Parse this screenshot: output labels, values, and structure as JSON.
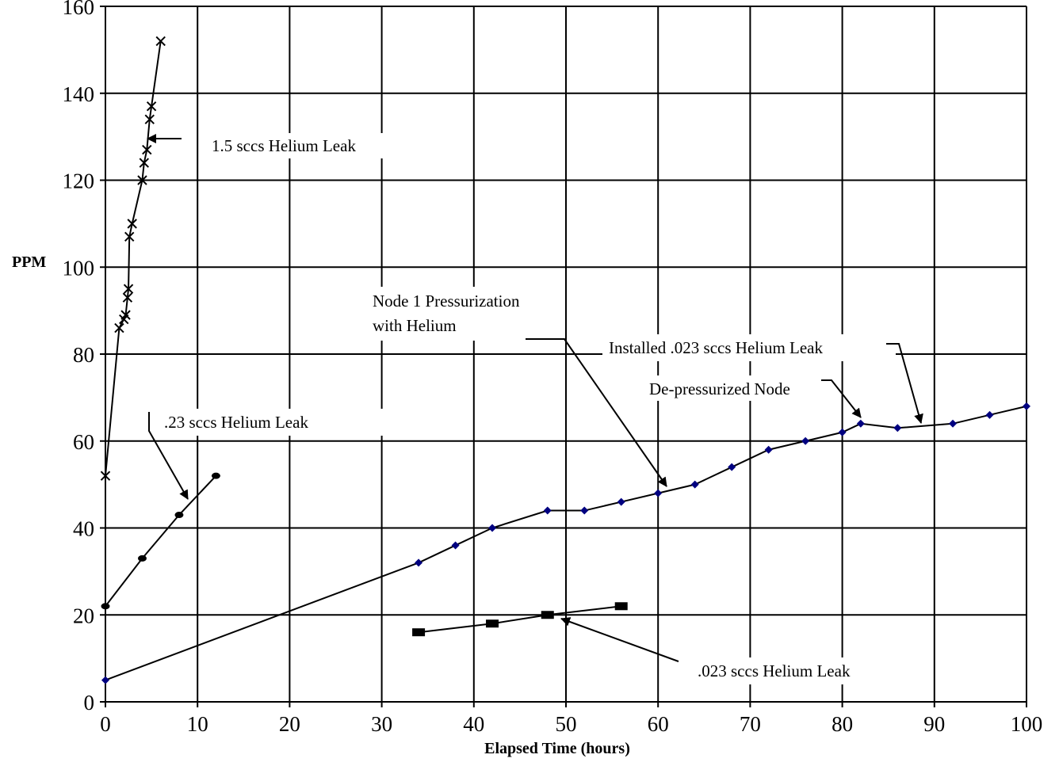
{
  "chart_data": {
    "type": "line",
    "xlabel": "Elapsed Time (hours)",
    "ylabel": "PPM",
    "xlim": [
      0,
      100
    ],
    "ylim": [
      0,
      160
    ],
    "x_ticks": [
      0,
      10,
      20,
      30,
      40,
      50,
      60,
      70,
      80,
      90,
      100
    ],
    "y_ticks": [
      0,
      20,
      40,
      60,
      80,
      100,
      120,
      140,
      160
    ],
    "grid": true,
    "series": [
      {
        "marker": "x",
        "color": "#000000",
        "points": [
          [
            0,
            52
          ],
          [
            1.5,
            86
          ],
          [
            2,
            88
          ],
          [
            2.2,
            89
          ],
          [
            2.4,
            93
          ],
          [
            2.5,
            95
          ],
          [
            2.6,
            107
          ],
          [
            2.9,
            110
          ],
          [
            4,
            120
          ],
          [
            4.2,
            124
          ],
          [
            4.5,
            127
          ],
          [
            4.8,
            134
          ],
          [
            5,
            137
          ],
          [
            6,
            152
          ]
        ]
      },
      {
        "marker": "circle",
        "color": "#000000",
        "points": [
          [
            0,
            22
          ],
          [
            4,
            33
          ],
          [
            8,
            43
          ],
          [
            12,
            52
          ]
        ]
      },
      {
        "marker": "diamond",
        "color": "#000080",
        "points": [
          [
            0,
            5
          ],
          [
            34,
            32
          ],
          [
            38,
            36
          ],
          [
            42,
            40
          ],
          [
            48,
            44
          ],
          [
            52,
            44
          ],
          [
            56,
            46
          ],
          [
            60,
            48
          ],
          [
            64,
            50
          ],
          [
            68,
            54
          ],
          [
            72,
            58
          ],
          [
            76,
            60
          ],
          [
            80,
            62
          ],
          [
            82,
            64
          ],
          [
            86,
            63
          ],
          [
            92,
            64
          ],
          [
            96,
            66
          ],
          [
            100,
            68
          ]
        ]
      },
      {
        "marker": "square",
        "color": "#000000",
        "points": [
          [
            34,
            16
          ],
          [
            42,
            18
          ],
          [
            48,
            20
          ],
          [
            56,
            22
          ]
        ]
      }
    ],
    "annotations": [
      {
        "lines": [
          "1.5 sccs Helium Leak"
        ]
      },
      {
        "lines": [
          ".23 sccs Helium  Leak"
        ]
      },
      {
        "lines": [
          "Node 1 Pressurization",
          "with Helium"
        ]
      },
      {
        "lines": [
          "Installed .023 sccs Helium Leak"
        ]
      },
      {
        "lines": [
          "De-pressurized Node"
        ]
      },
      {
        "lines": [
          ".023 sccs Helium  Leak"
        ]
      }
    ]
  }
}
